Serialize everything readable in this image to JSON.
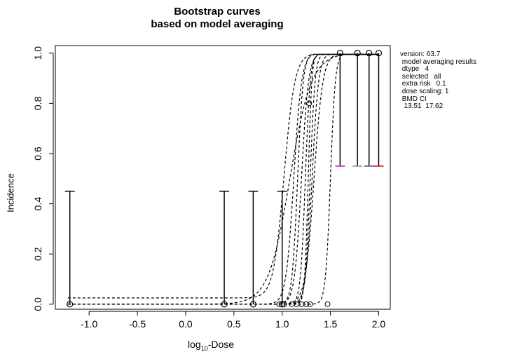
{
  "chart_data": {
    "type": "line",
    "title_line1": "Bootstrap curves",
    "title_line2": "based on model averaging",
    "xlabel_base": "log",
    "xlabel_sub": "10",
    "xlabel_rest": "-Dose",
    "ylabel": "Incidence",
    "xlim": [
      -1.35,
      2.12
    ],
    "ylim": [
      -0.02,
      1.03
    ],
    "x_ticks": [
      -1.0,
      -0.5,
      0.0,
      0.5,
      1.0,
      1.5,
      2.0
    ],
    "x_tick_labels": [
      "-1.0",
      "-0.5",
      "0.0",
      "0.5",
      "1.0",
      "1.5",
      "2.0"
    ],
    "y_ticks": [
      0.0,
      0.2,
      0.4,
      0.6,
      0.8,
      1.0
    ],
    "y_tick_labels": [
      "0.0",
      "0.2",
      "0.4",
      "0.6",
      "0.8",
      "1.0"
    ],
    "observed_points": [
      {
        "x": -1.2,
        "y": 0.0
      },
      {
        "x": 0.4,
        "y": 0.0
      },
      {
        "x": 0.7,
        "y": 0.0
      },
      {
        "x": 1.0,
        "y": 0.0
      },
      {
        "x": 1.6,
        "y": 1.0
      },
      {
        "x": 1.78,
        "y": 1.0
      },
      {
        "x": 1.9,
        "y": 1.0
      },
      {
        "x": 2.0,
        "y": 1.0
      }
    ],
    "error_bars": [
      {
        "x": -1.2,
        "low": 0.0,
        "high": 0.45,
        "color": "#000000"
      },
      {
        "x": 0.4,
        "low": 0.0,
        "high": 0.45,
        "color": "#000000"
      },
      {
        "x": 0.7,
        "low": 0.0,
        "high": 0.45,
        "color": "#000000"
      },
      {
        "x": 1.0,
        "low": 0.0,
        "high": 0.45,
        "color": "#000000"
      },
      {
        "x": 1.6,
        "low": 0.55,
        "high": 1.0,
        "color": "#cc00cc"
      },
      {
        "x": 1.78,
        "low": 0.55,
        "high": 1.0,
        "color": "#888888"
      },
      {
        "x": 1.9,
        "low": 0.55,
        "high": 1.0,
        "color": "#2a4a8a"
      },
      {
        "x": 2.0,
        "low": 0.55,
        "high": 1.0,
        "color": "#d40000"
      }
    ],
    "curve_points": [
      {
        "x": 0.97,
        "y": 0.0
      },
      {
        "x": 1.02,
        "y": 0.0
      },
      {
        "x": 1.1,
        "y": 0.0
      },
      {
        "x": 1.15,
        "y": 0.0
      },
      {
        "x": 1.2,
        "y": 0.0
      },
      {
        "x": 1.25,
        "y": 0.0
      },
      {
        "x": 1.29,
        "y": 0.0
      },
      {
        "x": 1.47,
        "y": 0.0
      },
      {
        "x": 1.28,
        "y": 0.8
      }
    ],
    "bootstrap_curves": [
      {
        "x50": 1.02,
        "k": 18,
        "lower": 0.025
      },
      {
        "x50": 1.08,
        "k": 9,
        "lower": 0.0
      },
      {
        "x50": 1.12,
        "k": 25,
        "lower": 0.0
      },
      {
        "x50": 1.16,
        "k": 35,
        "lower": 0.0
      },
      {
        "x50": 1.2,
        "k": 28,
        "lower": 0.0
      },
      {
        "x50": 1.24,
        "k": 40,
        "lower": 0.0
      },
      {
        "x50": 1.27,
        "k": 55,
        "lower": 0.0
      },
      {
        "x50": 1.29,
        "k": 40,
        "lower": 0.0
      },
      {
        "x50": 1.31,
        "k": 30,
        "lower": 0.0
      },
      {
        "x50": 1.33,
        "k": 22,
        "lower": 0.0
      },
      {
        "x50": 1.5,
        "k": 40,
        "lower": 0.0
      }
    ]
  },
  "info_panel": {
    "line1": "version: 63.7",
    "line2": " model averaging results",
    "line3": " dtype   4",
    "line4": " selected   all",
    "line5": " extra risk   0.1",
    "line6": " dose scaling: 1",
    "line7": " BMD CI",
    "line8": "  13.51  17.62"
  }
}
